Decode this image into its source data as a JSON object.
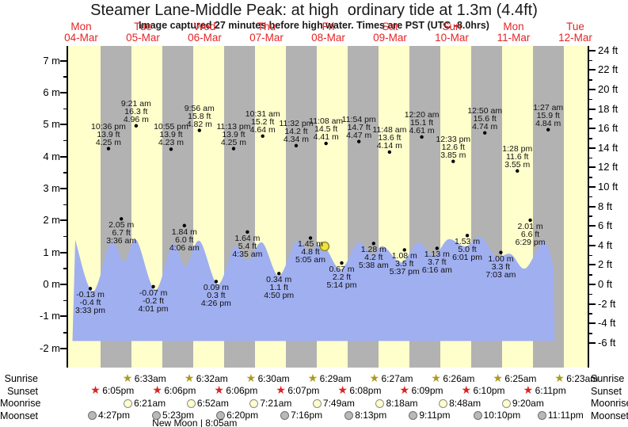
{
  "title": "Steamer Lane-Middle Peak: at high  ordinary tide at 1.3m (4.4ft)",
  "subtitle": "Image captured 27 minutes before high water. Times are PST (UTC -8.0hrs)",
  "colors": {
    "day_band": "#ffffcc",
    "night_band": "#b2b2b2",
    "tide_fill": "#a0aff0",
    "day_label_red": "#e62424",
    "annotation_text": "#111111",
    "axis": "#000000",
    "dot": "#000000",
    "current_marker_fill": "#f2e13e",
    "current_marker_stroke": "#8f8f25",
    "sunrise_star": "#ab9b1f",
    "sunset_star": "#d92525",
    "moonrise_fill": "#ffffcc",
    "moonrise_stroke": "#8a8a8a",
    "moonset_fill": "#b9b9b9",
    "moonset_stroke": "#6e6e6e"
  },
  "chart_data": {
    "type": "area",
    "title": "Steamer Lane-Middle Peak: at high  ordinary tide at 1.3m (4.4ft)",
    "subtitle": "Image captured 27 minutes before high water. Times are PST (UTC -8.0hrs)",
    "categories": [
      {
        "weekday": "Mon",
        "date": "04-Mar"
      },
      {
        "weekday": "Tue",
        "date": "05-Mar"
      },
      {
        "weekday": "Wed",
        "date": "06-Mar"
      },
      {
        "weekday": "Thu",
        "date": "07-Mar"
      },
      {
        "weekday": "Fri",
        "date": "08-Mar"
      },
      {
        "weekday": "Sat",
        "date": "09-Mar"
      },
      {
        "weekday": "Sun",
        "date": "10-Mar"
      },
      {
        "weekday": "Mon",
        "date": "11-Mar"
      },
      {
        "weekday": "Tue",
        "date": "12-Mar"
      }
    ],
    "y_left": {
      "unit": "m",
      "min": -2,
      "max": 7,
      "ticks": [
        {
          "v": 7,
          "t": "7 m"
        },
        {
          "v": 6,
          "t": "6 m"
        },
        {
          "v": 5,
          "t": "5 m"
        },
        {
          "v": 4,
          "t": "4 m"
        },
        {
          "v": 3,
          "t": "3 m"
        },
        {
          "v": 2,
          "t": "2 m"
        },
        {
          "v": 1,
          "t": "1 m"
        },
        {
          "v": 0,
          "t": "0 m"
        },
        {
          "v": -1,
          "t": "-1 m"
        },
        {
          "v": -2,
          "t": "-2 m"
        }
      ]
    },
    "y_right": {
      "unit": "ft",
      "min": -6,
      "max": 24,
      "ticks": [
        {
          "v": 24,
          "t": "24 ft"
        },
        {
          "v": 22,
          "t": "22 ft"
        },
        {
          "v": 20,
          "t": "20 ft"
        },
        {
          "v": 18,
          "t": "18 ft"
        },
        {
          "v": 16,
          "t": "16 ft"
        },
        {
          "v": 14,
          "t": "14 ft"
        },
        {
          "v": 12,
          "t": "12 ft"
        },
        {
          "v": 10,
          "t": "10 ft"
        },
        {
          "v": 8,
          "t": "8 ft"
        },
        {
          "v": 6,
          "t": "6 ft"
        },
        {
          "v": 4,
          "t": "4 ft"
        },
        {
          "v": 2,
          "t": "2 ft"
        },
        {
          "v": 0,
          "t": "0 ft"
        },
        {
          "v": -2,
          "t": "-2 ft"
        },
        {
          "v": -4,
          "t": "-4 ft"
        },
        {
          "v": -6,
          "t": "-6 ft"
        }
      ]
    },
    "high_tide_points": [
      {
        "day": 0,
        "time": "10:36 pm",
        "ft": "13.9 ft",
        "m": "4.25 m"
      },
      {
        "day": 1,
        "time": "9:21 am",
        "ft": "16.3 ft",
        "m": "4.96 m"
      },
      {
        "day": 1,
        "time": "10:55 pm",
        "ft": "13.9 ft",
        "m": "4.23 m"
      },
      {
        "day": 2,
        "time": "9:56 am",
        "ft": "15.8 ft",
        "m": "4.82 m"
      },
      {
        "day": 2,
        "time": "11:13 pm",
        "ft": "13.9 ft",
        "m": "4.25 m"
      },
      {
        "day": 3,
        "time": "10:31 am",
        "ft": "15.2 ft",
        "m": "4.64 m"
      },
      {
        "day": 3,
        "time": "11:32 pm",
        "ft": "14.2 ft",
        "m": "4.34 m"
      },
      {
        "day": 4,
        "time": "11:08 am",
        "ft": "14.5 ft",
        "m": "4.41 m"
      },
      {
        "day": 4,
        "time": "11:54 pm",
        "ft": "14.7 ft",
        "m": "4.47 m"
      },
      {
        "day": 5,
        "time": "11:48 am",
        "ft": "13.6 ft",
        "m": "4.14 m"
      },
      {
        "day": 6,
        "time": "12:20 am",
        "ft": "15.1 ft",
        "m": "4.61 m"
      },
      {
        "day": 6,
        "time": "12:33 pm",
        "ft": "12.6 ft",
        "m": "3.85 m"
      },
      {
        "day": 7,
        "time": "12:50 am",
        "ft": "15.6 ft",
        "m": "4.74 m"
      },
      {
        "day": 7,
        "time": "1:28 pm",
        "ft": "11.6 ft",
        "m": "3.55 m"
      },
      {
        "day": 8,
        "time": "1:27 am",
        "ft": "15.9 ft",
        "m": "4.84 m"
      }
    ],
    "low_tide_points": [
      {
        "day": 0,
        "m": "-0.13 m",
        "ft": "-0.4 ft",
        "time": "3:33 pm"
      },
      {
        "day": 1,
        "m": "2.05 m",
        "ft": "6.7 ft",
        "time": "3:36 am"
      },
      {
        "day": 1,
        "m": "-0.07 m",
        "ft": "-0.2 ft",
        "time": "4:01 pm"
      },
      {
        "day": 2,
        "m": "1.84 m",
        "ft": "6.0 ft",
        "time": "4:06 am"
      },
      {
        "day": 2,
        "m": "0.09 m",
        "ft": "0.3 ft",
        "time": "4:26 pm"
      },
      {
        "day": 3,
        "m": "1.64 m",
        "ft": "5.4 ft",
        "time": "4:35 am"
      },
      {
        "day": 3,
        "m": "0.34 m",
        "ft": "1.1 ft",
        "time": "4:50 pm"
      },
      {
        "day": 4,
        "m": "1.45 m",
        "ft": "4.8 ft",
        "time": "5:05 am"
      },
      {
        "day": 4,
        "m": "0.67 m",
        "ft": "2.2 ft",
        "time": "5:14 pm"
      },
      {
        "day": 5,
        "m": "1.28 m",
        "ft": "4.2 ft",
        "time": "5:38 am"
      },
      {
        "day": 5,
        "m": "1.08 m",
        "ft": "3.5 ft",
        "time": "5:37 pm"
      },
      {
        "day": 6,
        "m": "1.13 m",
        "ft": "3.7 ft",
        "time": "6:16 am"
      },
      {
        "day": 6,
        "m": "1.53 m",
        "ft": "5.0 ft",
        "time": "6:01 pm"
      },
      {
        "day": 7,
        "m": "1.00 m",
        "ft": "3.3 ft",
        "time": "7:03 am"
      },
      {
        "day": 7,
        "m": "2.01 m",
        "ft": "6.6 ft",
        "time": "6:29 pm"
      }
    ],
    "tide_curve_hours_m": [
      [
        9.7,
        1.39
      ],
      [
        16.5,
        -0.22
      ],
      [
        23.5,
        1.31
      ],
      [
        28.8,
        0.72
      ],
      [
        33.4,
        1.39
      ],
      [
        40.8,
        -0.17
      ],
      [
        47.5,
        1.26
      ],
      [
        52.5,
        0.57
      ],
      [
        58.0,
        1.36
      ],
      [
        65.1,
        0.0
      ],
      [
        71.5,
        1.19
      ],
      [
        76.5,
        0.74
      ],
      [
        82.3,
        1.31
      ],
      [
        88.8,
        0.27
      ],
      [
        95.5,
        1.34
      ],
      [
        100.5,
        1.04
      ],
      [
        106.0,
        1.24
      ],
      [
        112.8,
        0.47
      ],
      [
        119.5,
        1.31
      ],
      [
        124.8,
        0.94
      ],
      [
        129.4,
        1.19
      ],
      [
        136.5,
        0.69
      ],
      [
        142.9,
        1.31
      ],
      [
        149.1,
        0.89
      ],
      [
        154.6,
        1.41
      ],
      [
        161.4,
        1.19
      ],
      [
        167.2,
        1.49
      ],
      [
        173.1,
        0.87
      ],
      [
        178.9,
        0.95
      ],
      [
        184.6,
        0.5
      ],
      [
        191.8,
        1.36
      ],
      [
        195.5,
        0.55
      ]
    ],
    "current_marker": {
      "day": 4,
      "hour": 10.6,
      "m": 1.19
    }
  },
  "almanac": {
    "rows": [
      {
        "label": "Sunrise",
        "icon": "sunrise-star-icon",
        "entries": [
          {
            "day": 1,
            "time": "6:33am"
          },
          {
            "day": 2,
            "time": "6:32am"
          },
          {
            "day": 3,
            "time": "6:30am"
          },
          {
            "day": 4,
            "time": "6:29am"
          },
          {
            "day": 5,
            "time": "6:27am"
          },
          {
            "day": 6,
            "time": "6:26am"
          },
          {
            "day": 7,
            "time": "6:25am"
          },
          {
            "day": 8,
            "time": "6:23am"
          }
        ]
      },
      {
        "label": "Sunset",
        "icon": "sunset-star-icon",
        "entries": [
          {
            "day": 0,
            "time": "6:05pm"
          },
          {
            "day": 1,
            "time": "6:06pm"
          },
          {
            "day": 2,
            "time": "6:06pm"
          },
          {
            "day": 3,
            "time": "6:07pm"
          },
          {
            "day": 4,
            "time": "6:08pm"
          },
          {
            "day": 5,
            "time": "6:09pm"
          },
          {
            "day": 6,
            "time": "6:10pm"
          },
          {
            "day": 7,
            "time": "6:11pm"
          }
        ]
      },
      {
        "label": "Moonrise",
        "icon": "moonrise-circle-icon",
        "entries": [
          {
            "day": 1,
            "time": "6:21am"
          },
          {
            "day": 2,
            "time": "6:52am"
          },
          {
            "day": 3,
            "time": "7:21am"
          },
          {
            "day": 4,
            "time": "7:49am"
          },
          {
            "day": 5,
            "time": "8:18am"
          },
          {
            "day": 6,
            "time": "8:48am"
          },
          {
            "day": 7,
            "time": "9:20am"
          }
        ]
      },
      {
        "label": "Moonset",
        "icon": "moonset-circle-icon",
        "entries": [
          {
            "day": 0,
            "time": "4:27pm"
          },
          {
            "day": 1,
            "time": "5:23pm"
          },
          {
            "day": 2,
            "time": "6:20pm"
          },
          {
            "day": 3,
            "time": "7:16pm"
          },
          {
            "day": 4,
            "time": "8:13pm"
          },
          {
            "day": 5,
            "time": "9:11pm"
          },
          {
            "day": 6,
            "time": "10:10pm"
          },
          {
            "day": 7,
            "time": "11:11pm"
          }
        ]
      }
    ],
    "new_moon": {
      "label": "New Moon | 8:05am",
      "day": 2,
      "hour": 8.08
    }
  }
}
